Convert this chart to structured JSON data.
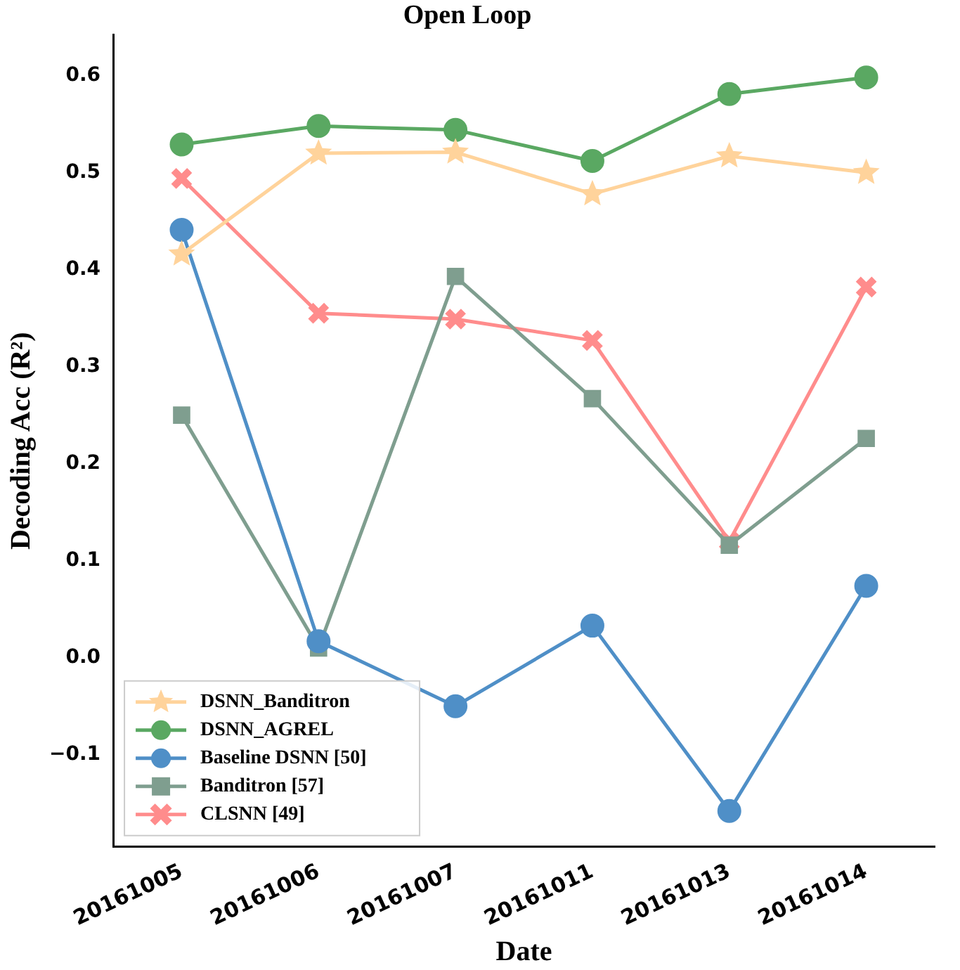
{
  "chart_data": {
    "type": "line",
    "title": "Open Loop",
    "xlabel": "Date",
    "ylabel": "Decoding Acc (R²)",
    "categories": [
      "20161005",
      "20161006",
      "20161007",
      "20161011",
      "20161013",
      "20161014"
    ],
    "series": [
      {
        "name": "DSNN_Banditron",
        "color": "#ffd39b",
        "marker": "star",
        "values": [
          0.416,
          0.52,
          0.521,
          0.478,
          0.517,
          0.5
        ]
      },
      {
        "name": "DSNN_AGREL",
        "color": "#5aa862",
        "marker": "circle",
        "values": [
          0.529,
          0.548,
          0.544,
          0.512,
          0.581,
          0.598
        ]
      },
      {
        "name": "Baseline DSNN [50]",
        "color": "#4f8fc7",
        "marker": "circle",
        "values": [
          0.441,
          0.017,
          -0.05,
          0.033,
          -0.158,
          0.074
        ]
      },
      {
        "name": "Banditron [57]",
        "color": "#7f9e8f",
        "marker": "square",
        "values": [
          0.25,
          0.01,
          0.393,
          0.267,
          0.116,
          0.226
        ]
      },
      {
        "name": "CLSNN [49]",
        "color": "#ff8c8c",
        "marker": "cross",
        "values": [
          0.494,
          0.355,
          0.349,
          0.327,
          0.12,
          0.382
        ]
      }
    ],
    "ylim": [
      -0.195,
      0.642
    ],
    "yticks": [
      -0.1,
      {
        "value": 0,
        "label": "0.0"
      },
      0.1,
      0.2,
      0.3,
      0.4,
      0.5,
      0.6
    ],
    "grid": false,
    "legend": "bottom left",
    "line_style": "solid"
  }
}
